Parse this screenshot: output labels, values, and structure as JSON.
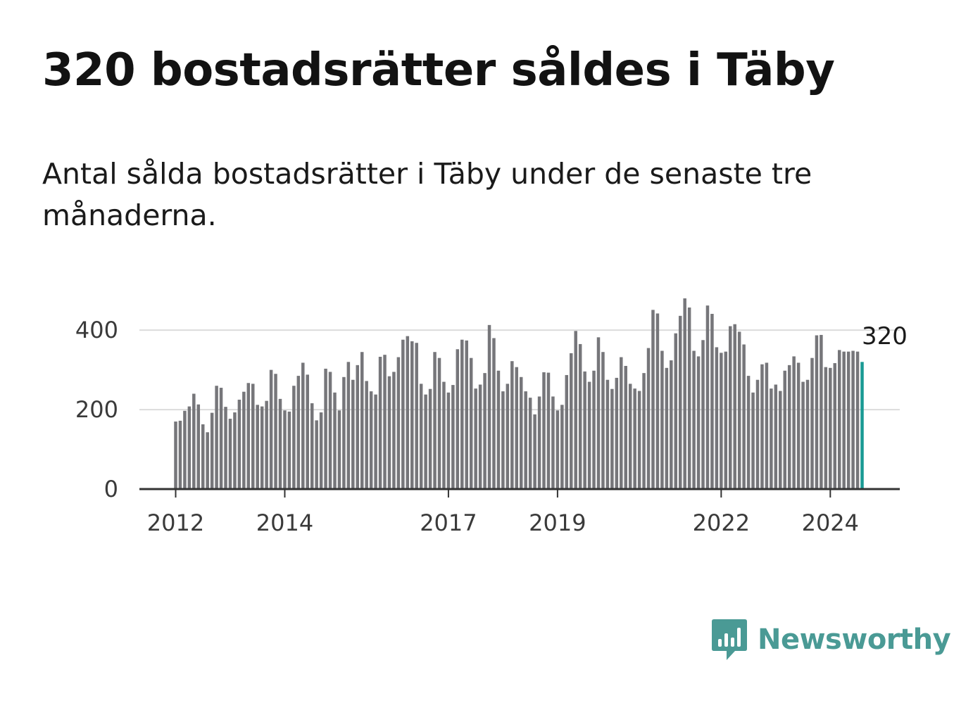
{
  "title": "320 bostadsrätter såldes i Täby",
  "subtitle": "Antal sålda bostadsrätter i Täby under de senaste tre månaderna.",
  "brand": {
    "name": "Newsworthy",
    "icon": "newsworthy-logo-icon",
    "color": "#4a9a95"
  },
  "colors": {
    "bar": "#76767a",
    "highlight": "#1a9a94",
    "grid": "#dcdcdc",
    "axis": "#333333"
  },
  "chart_data": {
    "type": "bar",
    "title": "320 bostadsrätter såldes i Täby",
    "xlabel": "",
    "ylabel": "",
    "ylim": [
      0,
      480
    ],
    "yticks": [
      0,
      200,
      400
    ],
    "grid": true,
    "legend": "none",
    "start": "2012-01",
    "frequency": "monthly",
    "xtick_labels": [
      {
        "label": "2012",
        "index": 0
      },
      {
        "label": "2014",
        "index": 24
      },
      {
        "label": "2017",
        "index": 60
      },
      {
        "label": "2019",
        "index": 84
      },
      {
        "label": "2022",
        "index": 120
      },
      {
        "label": "2024",
        "index": 144
      }
    ],
    "highlight_index": 151,
    "highlight_label": "320",
    "values": [
      170,
      172,
      197,
      208,
      240,
      213,
      163,
      143,
      192,
      260,
      255,
      207,
      177,
      193,
      225,
      245,
      267,
      265,
      212,
      208,
      222,
      300,
      290,
      227,
      198,
      195,
      260,
      285,
      318,
      288,
      216,
      173,
      193,
      303,
      295,
      243,
      198,
      282,
      320,
      275,
      312,
      345,
      272,
      246,
      238,
      333,
      338,
      284,
      295,
      332,
      376,
      385,
      372,
      368,
      265,
      238,
      252,
      345,
      330,
      270,
      243,
      262,
      352,
      376,
      374,
      330,
      253,
      263,
      292,
      413,
      380,
      298,
      246,
      265,
      322,
      307,
      282,
      246,
      230,
      188,
      233,
      294,
      293,
      233,
      198,
      212,
      287,
      342,
      398,
      365,
      296,
      270,
      298,
      382,
      345,
      275,
      252,
      280,
      332,
      310,
      265,
      253,
      247,
      292,
      355,
      451,
      442,
      348,
      305,
      324,
      392,
      436,
      480,
      457,
      348,
      334,
      375,
      462,
      441,
      357,
      343,
      346,
      410,
      415,
      396,
      364,
      285,
      243,
      275,
      314,
      318,
      253,
      263,
      247,
      298,
      312,
      334,
      318,
      270,
      275,
      330,
      387,
      388,
      307,
      305,
      317,
      350,
      346,
      346,
      348,
      346,
      320
    ]
  }
}
